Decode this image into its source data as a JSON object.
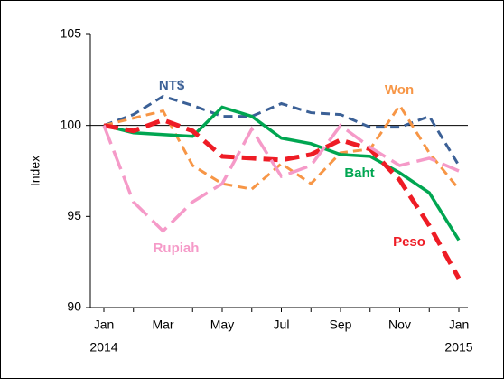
{
  "chart_data": {
    "type": "line",
    "categories": [
      "Jan",
      null,
      "Mar",
      null,
      "May",
      null,
      "Jul",
      null,
      "Sep",
      null,
      "Nov",
      null,
      "Jan"
    ],
    "x_sublabels": [
      "2014",
      "2015"
    ],
    "ylabel": "Index",
    "ylim": [
      90,
      105
    ],
    "yticks": [
      90,
      95,
      100,
      105
    ],
    "reference_line": 100,
    "series": [
      {
        "name": "NT$",
        "color": "#3b6096",
        "dash": "10 6",
        "values": [
          100,
          100.6,
          101.6,
          101.1,
          100.5,
          100.5,
          101.2,
          100.7,
          100.6,
          99.9,
          99.9,
          100.5,
          97.8
        ]
      },
      {
        "name": "Won",
        "color": "#f79646",
        "dash": "10 6",
        "values": [
          100,
          100.4,
          100.8,
          97.8,
          96.8,
          96.5,
          97.9,
          96.8,
          98.5,
          98.7,
          101.1,
          98.5,
          96.5
        ]
      },
      {
        "name": "Baht",
        "color": "#00a651",
        "dash": "none",
        "values": [
          100,
          99.6,
          99.5,
          99.4,
          101.0,
          100.5,
          99.3,
          99.0,
          98.4,
          98.3,
          97.4,
          96.3,
          93.7
        ]
      },
      {
        "name": "Peso",
        "color": "#ee1c25",
        "dash": "16 8",
        "values": [
          100,
          99.7,
          100.3,
          99.7,
          98.3,
          98.2,
          98.1,
          98.4,
          99.2,
          98.7,
          97.0,
          94.5,
          91.6
        ]
      },
      {
        "name": "Rupiah",
        "color": "#f59ac8",
        "dash": "22 8",
        "values": [
          100,
          95.8,
          94.2,
          95.8,
          96.8,
          99.8,
          97.2,
          97.8,
          100.0,
          98.8,
          97.8,
          98.2,
          97.5
        ]
      }
    ]
  }
}
